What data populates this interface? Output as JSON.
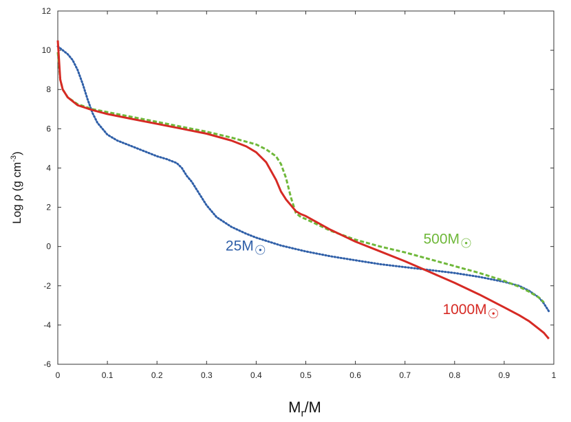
{
  "chart_data": {
    "type": "line",
    "title": "",
    "xlabel": "M",
    "xlabel_sub": "r",
    "xlabel_tail": "/M",
    "ylabel": "Log ρ (g cm",
    "ylabel_sup": "-3",
    "ylabel_tail": ")",
    "xlim": [
      0,
      1
    ],
    "ylim": [
      -6,
      12
    ],
    "xticks": [
      "0",
      "0.1",
      "0.2",
      "0.3",
      "0.4",
      "0.5",
      "0.6",
      "0.7",
      "0.8",
      "0.9",
      "1"
    ],
    "yticks": [
      "-6",
      "-4",
      "-2",
      "0",
      "2",
      "4",
      "6",
      "8",
      "10",
      "12"
    ],
    "grid": false,
    "series": [
      {
        "name": "25M☉",
        "label_text": "25M",
        "color": "#2f5fa8",
        "style": "dotted",
        "x": [
          0,
          0.01,
          0.02,
          0.03,
          0.04,
          0.05,
          0.06,
          0.07,
          0.08,
          0.09,
          0.1,
          0.12,
          0.15,
          0.18,
          0.2,
          0.22,
          0.24,
          0.25,
          0.26,
          0.27,
          0.28,
          0.29,
          0.3,
          0.32,
          0.35,
          0.38,
          0.4,
          0.45,
          0.5,
          0.55,
          0.6,
          0.65,
          0.7,
          0.75,
          0.8,
          0.85,
          0.9,
          0.93,
          0.95,
          0.97,
          0.98,
          0.99
        ],
        "y": [
          10.2,
          10.0,
          9.8,
          9.5,
          9.0,
          8.3,
          7.5,
          6.8,
          6.3,
          6.0,
          5.7,
          5.4,
          5.1,
          4.8,
          4.6,
          4.45,
          4.25,
          4.0,
          3.6,
          3.3,
          2.9,
          2.5,
          2.1,
          1.5,
          1.0,
          0.65,
          0.45,
          0.05,
          -0.25,
          -0.5,
          -0.7,
          -0.9,
          -1.05,
          -1.2,
          -1.35,
          -1.55,
          -1.8,
          -2.0,
          -2.25,
          -2.6,
          -2.9,
          -3.3
        ]
      },
      {
        "name": "500M☉",
        "label_text": "500M",
        "color": "#6fb83a",
        "style": "dashed",
        "x": [
          0,
          0.005,
          0.01,
          0.02,
          0.04,
          0.07,
          0.1,
          0.15,
          0.2,
          0.25,
          0.3,
          0.35,
          0.4,
          0.42,
          0.44,
          0.45,
          0.46,
          0.47,
          0.48,
          0.49,
          0.5,
          0.55,
          0.6,
          0.65,
          0.7,
          0.75,
          0.8,
          0.85,
          0.9,
          0.93,
          0.95,
          0.97,
          0.98
        ],
        "y": [
          9.9,
          8.5,
          8.0,
          7.6,
          7.25,
          7.0,
          6.85,
          6.6,
          6.35,
          6.1,
          5.85,
          5.55,
          5.2,
          4.95,
          4.6,
          4.2,
          3.5,
          2.5,
          1.7,
          1.5,
          1.4,
          0.8,
          0.35,
          0.0,
          -0.3,
          -0.65,
          -1.0,
          -1.35,
          -1.75,
          -2.05,
          -2.3,
          -2.6,
          -2.85
        ]
      },
      {
        "name": "1000M☉",
        "label_text": "1000M",
        "color": "#d62a24",
        "style": "solid",
        "x": [
          0,
          0.005,
          0.01,
          0.02,
          0.04,
          0.07,
          0.1,
          0.15,
          0.2,
          0.25,
          0.3,
          0.35,
          0.38,
          0.4,
          0.42,
          0.44,
          0.45,
          0.46,
          0.47,
          0.48,
          0.49,
          0.5,
          0.55,
          0.6,
          0.65,
          0.7,
          0.75,
          0.8,
          0.85,
          0.9,
          0.93,
          0.95,
          0.97,
          0.98,
          0.99
        ],
        "y": [
          10.5,
          8.5,
          8.0,
          7.6,
          7.2,
          6.95,
          6.75,
          6.5,
          6.25,
          6.0,
          5.75,
          5.4,
          5.1,
          4.8,
          4.3,
          3.4,
          2.8,
          2.4,
          2.1,
          1.8,
          1.65,
          1.55,
          0.85,
          0.25,
          -0.25,
          -0.75,
          -1.3,
          -1.85,
          -2.45,
          -3.1,
          -3.5,
          -3.8,
          -4.2,
          -4.4,
          -4.7
        ]
      }
    ],
    "annotations": [
      {
        "series": "25M☉",
        "text": "25M",
        "sub": "☉",
        "at_x": 0.395,
        "at_y": -0.2
      },
      {
        "series": "500M☉",
        "text": "500M",
        "sub": "☉",
        "at_x": 0.81,
        "at_y": 0.15
      },
      {
        "series": "1000M☉",
        "text": "1000M",
        "sub": "☉",
        "at_x": 0.865,
        "at_y": -3.45
      }
    ],
    "legend": "none"
  }
}
